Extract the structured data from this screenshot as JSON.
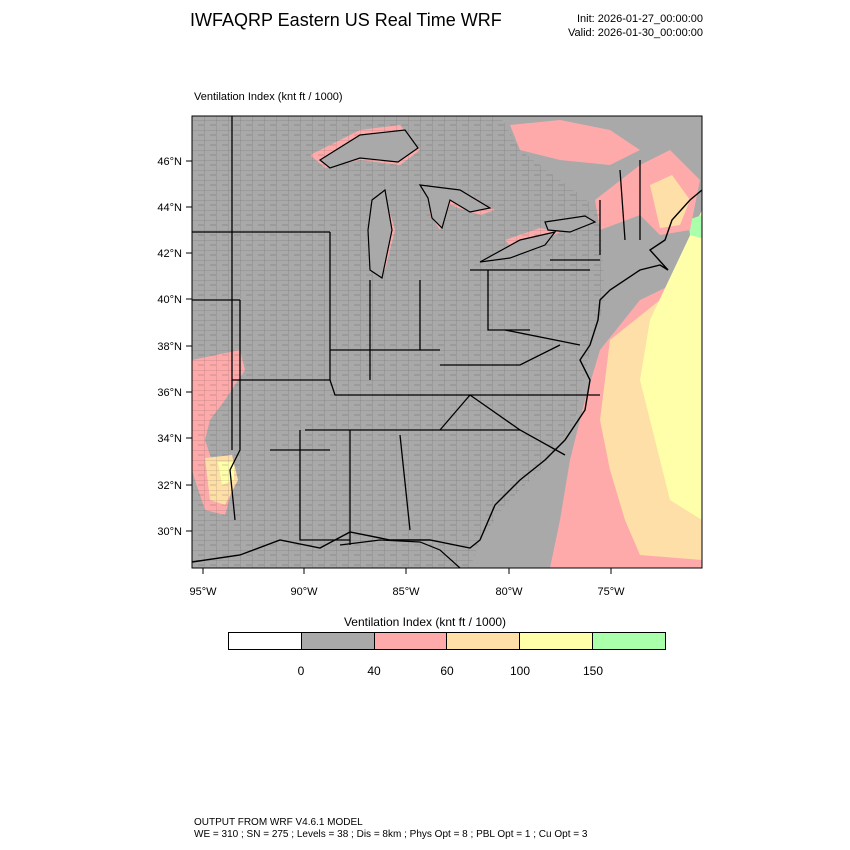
{
  "header": {
    "title": "IWFAQRP Eastern US Real Time WRF",
    "init": "Init: 2026-01-27_00:00:00",
    "valid": "Valid: 2026-01-30_00:00:00",
    "field_label": "Ventilation Index   (knt ft / 1000)"
  },
  "map": {
    "lat_labels": [
      "46°N",
      "44°N",
      "42°N",
      "40°N",
      "38°N",
      "36°N",
      "34°N",
      "32°N",
      "30°N"
    ],
    "lon_labels": [
      "95°W",
      "90°W",
      "85°W",
      "80°W",
      "75°W"
    ],
    "colors": {
      "land_low": "#a9a9a9",
      "ocean": "#a9a9a9",
      "pink": "#ffaaaa",
      "tan": "#ffdfa8",
      "yellow": "#ffffaa",
      "green": "#aaffaa",
      "border": "#000000"
    }
  },
  "colorbar": {
    "title": "Ventilation Index  (knt ft / 1000)",
    "colors": [
      "#ffffff",
      "#a9a9a9",
      "#ffaaaa",
      "#ffdfa8",
      "#ffffaa",
      "#aaffaa"
    ],
    "ticks": [
      "0",
      "40",
      "60",
      "100",
      "150"
    ]
  },
  "footer": {
    "line1": "OUTPUT FROM WRF V4.6.1 MODEL",
    "line2": "WE = 310 ; SN = 275 ; Levels = 38 ; Dis = 8km ; Phys Opt = 8 ; PBL Opt = 1 ; Cu Opt = 3"
  }
}
